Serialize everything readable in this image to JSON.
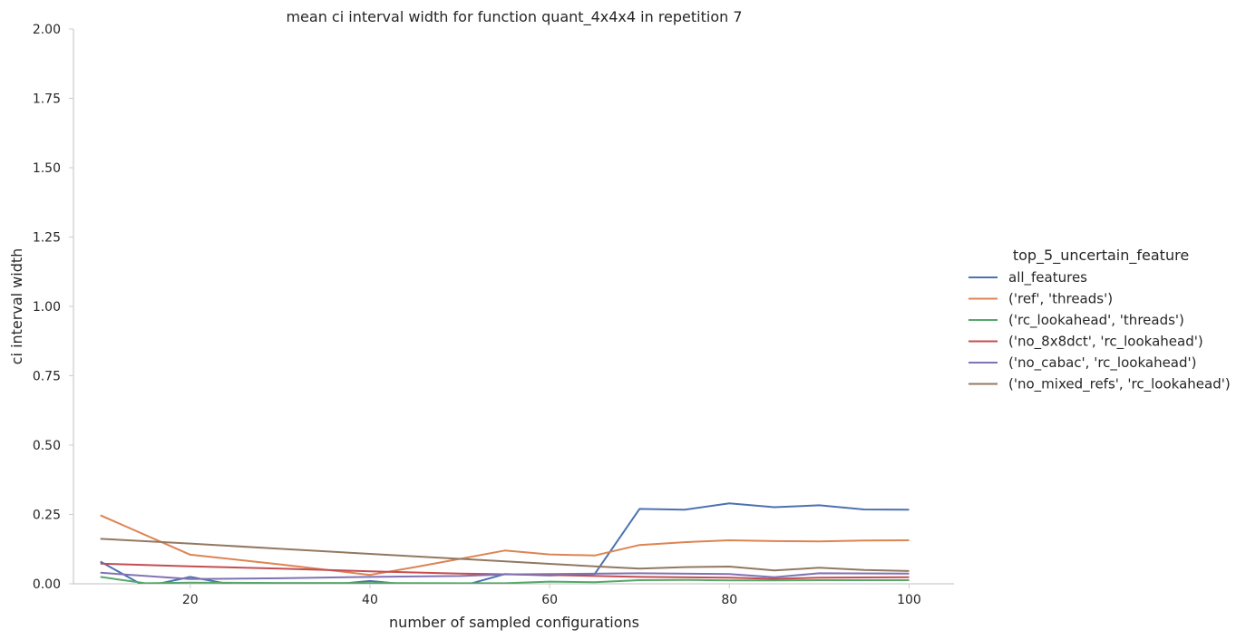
{
  "chart_data": {
    "type": "line",
    "title": "mean ci interval width for function quant_4x4x4 in repetition 7",
    "xlabel": "number of sampled configurations",
    "ylabel": "ci interval width",
    "xlim": [
      7,
      105
    ],
    "ylim": [
      0,
      2
    ],
    "xticks": [
      20,
      40,
      60,
      80,
      100
    ],
    "yticks": [
      "0.00",
      "0.25",
      "0.50",
      "0.75",
      "1.00",
      "1.25",
      "1.50",
      "1.75",
      "2.00"
    ],
    "grid": false,
    "legend": {
      "title": "top_5_uncertain_feature",
      "placement": "right"
    },
    "series": [
      {
        "name": "all_features",
        "color": "#4c72b0",
        "x": [
          10,
          15,
          20,
          25,
          30,
          35,
          40,
          45,
          50,
          55,
          60,
          65,
          70,
          75,
          80,
          85,
          90,
          95,
          100
        ],
        "y": [
          0.08,
          -0.01,
          0.025,
          -0.005,
          -0.01,
          -0.005,
          0.01,
          -0.005,
          -0.01,
          0.035,
          0.03,
          0.035,
          0.27,
          0.267,
          0.29,
          0.276,
          0.283,
          0.268,
          0.267
        ]
      },
      {
        "name": "('ref', 'threads')",
        "color": "#dd8452",
        "x": [
          10,
          20,
          30,
          40,
          45,
          50,
          55,
          60,
          65,
          70,
          75,
          80,
          85,
          90,
          95,
          100
        ],
        "y": [
          0.247,
          0.105,
          0.07,
          0.032,
          0.06,
          0.09,
          0.12,
          0.106,
          0.102,
          0.14,
          0.15,
          0.157,
          0.154,
          0.153,
          0.156,
          0.157
        ]
      },
      {
        "name": "('rc_lookahead', 'threads')",
        "color": "#55a868",
        "x": [
          10,
          15,
          20,
          30,
          40,
          50,
          55,
          60,
          65,
          70,
          75,
          80,
          85,
          90,
          95,
          100
        ],
        "y": [
          0.025,
          0.002,
          0.004,
          0.003,
          0.003,
          0.002,
          0.002,
          0.008,
          0.006,
          0.013,
          0.014,
          0.012,
          0.012,
          0.013,
          0.013,
          0.013
        ]
      },
      {
        "name": "('no_8x8dct', 'rc_lookahead')",
        "color": "#c44e52",
        "x": [
          10,
          20,
          30,
          40,
          50,
          60,
          70,
          80,
          85,
          90,
          100
        ],
        "y": [
          0.073,
          0.063,
          0.055,
          0.045,
          0.037,
          0.032,
          0.025,
          0.022,
          0.018,
          0.022,
          0.024
        ]
      },
      {
        "name": "('no_cabac', 'rc_lookahead')",
        "color": "#8172b3",
        "x": [
          10,
          20,
          30,
          40,
          50,
          55,
          60,
          70,
          80,
          85,
          90,
          100
        ],
        "y": [
          0.04,
          0.017,
          0.02,
          0.025,
          0.028,
          0.034,
          0.035,
          0.038,
          0.035,
          0.024,
          0.038,
          0.037
        ]
      },
      {
        "name": "('no_mixed_refs', 'rc_lookahead')",
        "color": "#937860",
        "x": [
          10,
          20,
          30,
          40,
          50,
          60,
          65,
          70,
          75,
          80,
          85,
          90,
          95,
          100
        ],
        "y": [
          0.162,
          0.145,
          0.126,
          0.108,
          0.09,
          0.072,
          0.063,
          0.055,
          0.06,
          0.062,
          0.048,
          0.058,
          0.05,
          0.046
        ]
      }
    ]
  }
}
